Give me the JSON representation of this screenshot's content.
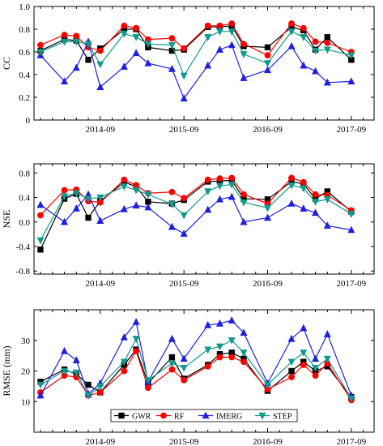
{
  "chart_data": [
    {
      "type": "line",
      "ylabel": "CC",
      "ylim": [
        0,
        1.0
      ],
      "yticks": [
        "0",
        "0.2",
        "0.4",
        "0.6",
        "0.8",
        "1.0"
      ],
      "yticks_values": [
        0,
        0.2,
        0.4,
        0.6,
        0.8,
        1.0
      ],
      "xtick_labels": [
        "2014-09",
        "2015-09",
        "2016-09",
        "2017-09"
      ],
      "xtick_index": [
        5,
        12,
        19,
        26
      ],
      "grid": false,
      "series": [
        {
          "name": "GWR",
          "values": [
            0.61,
            0.71,
            0.7,
            0.53,
            0.63,
            0.8,
            0.8,
            0.64,
            0.61,
            0.62,
            0.82,
            0.82,
            0.83,
            0.65,
            0.64,
            0.82,
            0.79,
            0.62,
            0.73,
            0.53
          ]
        },
        {
          "name": "RF",
          "values": [
            0.66,
            0.75,
            0.74,
            0.64,
            0.61,
            0.83,
            0.81,
            0.71,
            0.72,
            0.63,
            0.83,
            0.83,
            0.85,
            0.67,
            0.57,
            0.85,
            0.81,
            0.69,
            0.68,
            0.6
          ]
        },
        {
          "name": "IMERG",
          "values": [
            0.57,
            0.34,
            0.46,
            0.69,
            0.29,
            0.47,
            0.59,
            0.5,
            0.45,
            0.19,
            0.48,
            0.62,
            0.66,
            0.37,
            0.44,
            0.65,
            0.48,
            0.43,
            0.33,
            0.34
          ]
        },
        {
          "name": "STEP",
          "values": [
            0.6,
            0.69,
            0.69,
            0.67,
            0.49,
            0.76,
            0.73,
            0.67,
            0.66,
            0.39,
            0.73,
            0.78,
            0.78,
            0.58,
            0.5,
            0.78,
            0.73,
            0.61,
            0.62,
            0.57
          ]
        }
      ]
    },
    {
      "type": "line",
      "ylabel": "NSE",
      "ylim": [
        -0.85,
        0.95
      ],
      "yticks": [
        "-0.8",
        "-0.4",
        "0.0",
        "0.4",
        "0.8"
      ],
      "yticks_values": [
        -0.8,
        -0.4,
        0.0,
        0.4,
        0.8
      ],
      "xtick_labels": [
        "2014-09",
        "2015-09",
        "2016-09",
        "2017-09"
      ],
      "xtick_index": [
        5,
        12,
        19,
        26
      ],
      "grid": false,
      "series": [
        {
          "name": "GWR",
          "values": [
            -0.45,
            0.38,
            0.46,
            0.07,
            0.34,
            0.65,
            0.58,
            0.33,
            0.3,
            0.36,
            0.66,
            0.67,
            0.68,
            0.38,
            0.37,
            0.66,
            0.62,
            0.38,
            0.5,
            0.17
          ]
        },
        {
          "name": "RF",
          "values": [
            0.11,
            0.52,
            0.53,
            0.34,
            0.32,
            0.69,
            0.6,
            0.47,
            0.49,
            0.39,
            0.69,
            0.71,
            0.72,
            0.45,
            0.3,
            0.72,
            0.65,
            0.45,
            0.44,
            0.19
          ]
        },
        {
          "name": "IMERG",
          "values": [
            0.28,
            0.0,
            0.22,
            0.45,
            0.02,
            0.21,
            0.27,
            0.24,
            -0.08,
            -0.19,
            0.2,
            0.37,
            0.41,
            0.0,
            0.07,
            0.3,
            0.22,
            0.15,
            -0.06,
            -0.13
          ]
        },
        {
          "name": "STEP",
          "values": [
            -0.3,
            0.42,
            0.47,
            0.38,
            0.4,
            0.58,
            0.52,
            0.45,
            0.29,
            0.11,
            0.5,
            0.59,
            0.61,
            0.32,
            0.23,
            0.6,
            0.55,
            0.33,
            0.37,
            0.13
          ]
        }
      ]
    },
    {
      "type": "line",
      "ylabel": "RMSE (mm)",
      "ylim": [
        0,
        40
      ],
      "yticks": [
        "10",
        "20",
        "30"
      ],
      "yticks_values": [
        10,
        20,
        30
      ],
      "xtick_labels": [
        "2014-09",
        "2015-09",
        "2016-09",
        "2017-09"
      ],
      "xtick_index": [
        5,
        12,
        19,
        26
      ],
      "grid": false,
      "series": [
        {
          "name": "GWR",
          "values": [
            16.5,
            20.5,
            19.0,
            15.5,
            13.0,
            22.0,
            27.0,
            16.0,
            24.5,
            17.5,
            22.0,
            25.5,
            26.0,
            24.0,
            13.5,
            20.0,
            23.0,
            20.0,
            21.5,
            11.5
          ]
        },
        {
          "name": "RF",
          "values": [
            13.0,
            18.5,
            18.0,
            12.0,
            13.0,
            20.0,
            26.5,
            14.5,
            20.5,
            17.0,
            21.5,
            24.5,
            24.5,
            23.0,
            14.0,
            18.0,
            22.0,
            18.5,
            22.5,
            10.5
          ]
        },
        {
          "name": "IMERG",
          "values": [
            12.0,
            26.5,
            23.5,
            12.5,
            16.0,
            31.0,
            36.0,
            16.5,
            30.5,
            24.0,
            35.0,
            35.5,
            36.5,
            32.5,
            16.0,
            30.5,
            34.0,
            24.0,
            32.0,
            12.0
          ]
        },
        {
          "name": "STEP",
          "values": [
            15.5,
            20.0,
            19.5,
            12.0,
            15.0,
            23.0,
            30.5,
            17.0,
            22.5,
            21.0,
            27.0,
            28.0,
            30.0,
            26.0,
            15.5,
            23.0,
            26.0,
            21.0,
            24.0,
            11.0
          ]
        }
      ],
      "legend": {
        "placement": "bottom-center",
        "entries": [
          "GWR",
          "RF",
          "IMERG",
          "STEP"
        ]
      }
    }
  ],
  "x_index": [
    0,
    2,
    3,
    4,
    5,
    7,
    8,
    9,
    11,
    12,
    14,
    15,
    16,
    17,
    19,
    21,
    22,
    23,
    24,
    26
  ],
  "colors": {
    "GWR": "#000000",
    "RF": "#ff0000",
    "IMERG": "#1f1fe0",
    "STEP": "#119a8c"
  },
  "markers": {
    "GWR": "square",
    "RF": "circle",
    "IMERG": "triangle-up",
    "STEP": "triangle-down"
  }
}
